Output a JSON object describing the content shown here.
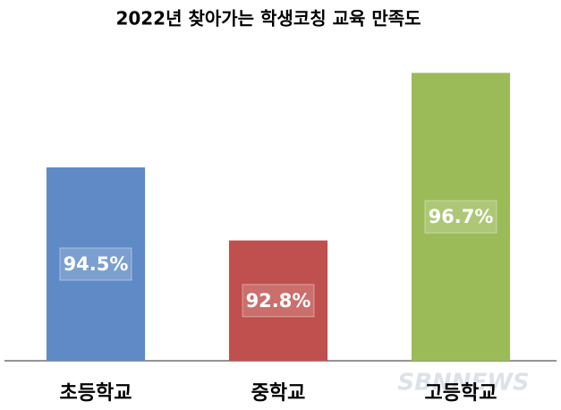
{
  "chart_data": {
    "type": "bar",
    "title": "2022년 찾아가는 학생코칭 교육 만족도",
    "categories": [
      "초등학교",
      "중학교",
      "고등학교"
    ],
    "values": [
      94.5,
      92.8,
      96.7
    ],
    "value_labels": [
      "94.5%",
      "92.8%",
      "96.7%"
    ],
    "colors": [
      "#5f8ac5",
      "#c0504d",
      "#9bbb59"
    ],
    "ylim": [
      90,
      97.5
    ],
    "watermark": "SBNNEWS"
  }
}
